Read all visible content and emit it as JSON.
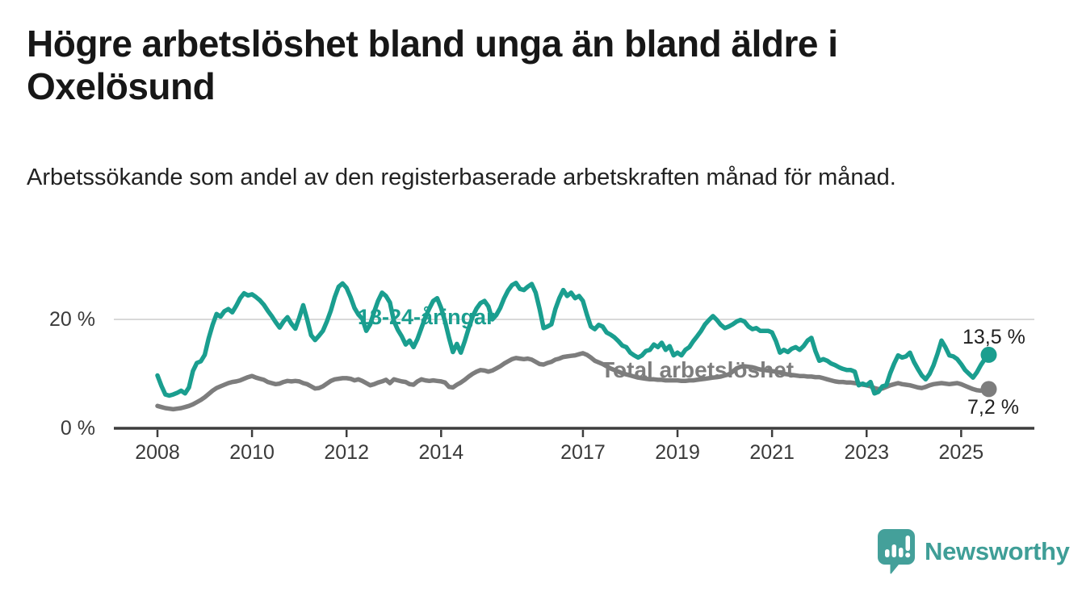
{
  "title": "Högre arbetslöshet bland unga än bland äldre i Oxelösund",
  "subtitle": "Arbetssökande som andel av den registerbaserade arbetskraften månad för månad.",
  "footer": {
    "brand": "Newsworthy"
  },
  "colors": {
    "youth_line": "#1a9e8f",
    "total_line": "#7d7d7d",
    "gridline": "#d9d9d9",
    "axis": "#3d3d3d",
    "text": "#1a1a1a",
    "brand_teal": "#44a09a"
  },
  "chart_data": {
    "type": "line",
    "x_unit": "month",
    "x_start": "2008-01",
    "x_end": "2025-08",
    "ylim": [
      0,
      28
    ],
    "grid": "y-at-20-only",
    "x_ticks": [
      {
        "year": 2008,
        "label": "2008"
      },
      {
        "year": 2010,
        "label": "2010"
      },
      {
        "year": 2012,
        "label": "2012"
      },
      {
        "year": 2014,
        "label": "2014"
      },
      {
        "year": 2017,
        "label": "2017"
      },
      {
        "year": 2019,
        "label": "2019"
      },
      {
        "year": 2021,
        "label": "2021"
      },
      {
        "year": 2023,
        "label": "2023"
      },
      {
        "year": 2025,
        "label": "2025"
      }
    ],
    "y_ticks": [
      {
        "value": 0,
        "label": "0 %"
      },
      {
        "value": 20,
        "label": "20 %"
      }
    ],
    "legend_position": "inline-labels-on-lines",
    "series": [
      {
        "name": "18-24-åringar",
        "color": "#1a9e8f",
        "end_label": "13,5 %",
        "end_value": 13.5,
        "values": [
          9.7,
          7.8,
          6.2,
          6.0,
          6.2,
          6.5,
          6.9,
          6.4,
          7.5,
          10.5,
          12.0,
          12.3,
          13.5,
          16.5,
          19.0,
          21.0,
          20.5,
          21.5,
          21.9,
          21.3,
          22.5,
          23.9,
          24.8,
          24.4,
          24.6,
          24.1,
          23.5,
          22.7,
          21.6,
          20.6,
          19.5,
          18.5,
          19.6,
          20.4,
          19.2,
          18.3,
          20.3,
          22.6,
          20.0,
          17.1,
          16.2,
          17.0,
          17.9,
          19.6,
          21.6,
          24.1,
          26.0,
          26.6,
          25.8,
          24.1,
          22.1,
          20.9,
          20.1,
          17.9,
          19.1,
          21.4,
          23.4,
          24.9,
          24.3,
          23.1,
          19.7,
          18.1,
          16.9,
          15.4,
          16.1,
          14.9,
          16.4,
          18.4,
          20.4,
          22.0,
          23.4,
          23.9,
          22.1,
          19.6,
          16.6,
          14.0,
          15.5,
          13.9,
          16.0,
          18.4,
          20.5,
          22.0,
          23.0,
          23.4,
          22.4,
          20.0,
          20.8,
          22.1,
          23.9,
          25.3,
          26.3,
          26.7,
          25.6,
          25.4,
          26.0,
          26.5,
          24.9,
          21.9,
          18.4,
          18.7,
          19.1,
          21.9,
          23.9,
          25.4,
          24.3,
          24.9,
          23.9,
          24.3,
          23.4,
          20.9,
          18.7,
          18.2,
          19.0,
          18.7,
          17.6,
          17.2,
          16.7,
          16.0,
          15.2,
          14.9,
          13.9,
          13.4,
          13.0,
          13.4,
          14.2,
          14.4,
          15.4,
          14.9,
          15.7,
          14.4,
          15.1,
          13.4,
          13.9,
          13.4,
          14.4,
          14.9,
          16.0,
          16.9,
          17.9,
          19.1,
          19.9,
          20.6,
          19.9,
          19.0,
          18.4,
          18.7,
          19.1,
          19.6,
          19.9,
          19.6,
          18.7,
          18.2,
          18.4,
          17.9,
          17.9,
          17.9,
          17.6,
          16.0,
          13.9,
          14.4,
          14.0,
          14.6,
          14.9,
          14.4,
          15.1,
          16.1,
          16.6,
          14.2,
          12.4,
          12.7,
          12.4,
          11.9,
          11.6,
          11.2,
          10.9,
          10.7,
          10.7,
          10.4,
          7.9,
          8.2,
          7.9,
          8.5,
          6.4,
          6.7,
          7.7,
          7.9,
          10.1,
          11.9,
          13.4,
          13.0,
          13.2,
          13.9,
          12.2,
          10.9,
          9.7,
          9.0,
          10.0,
          11.6,
          13.7,
          16.1,
          14.9,
          13.4,
          13.2,
          12.7,
          11.8,
          10.7,
          10.0,
          9.3,
          10.3,
          11.6,
          12.7,
          13.5
        ]
      },
      {
        "name": "Total arbetslöshet",
        "color": "#7d7d7d",
        "end_label": "7,2 %",
        "end_value": 7.2,
        "values": [
          4.1,
          3.9,
          3.7,
          3.6,
          3.5,
          3.6,
          3.7,
          3.9,
          4.1,
          4.4,
          4.8,
          5.2,
          5.7,
          6.3,
          6.9,
          7.4,
          7.7,
          8.0,
          8.3,
          8.5,
          8.6,
          8.8,
          9.1,
          9.4,
          9.6,
          9.3,
          9.1,
          8.9,
          8.5,
          8.3,
          8.1,
          8.2,
          8.5,
          8.7,
          8.6,
          8.7,
          8.6,
          8.3,
          8.1,
          7.7,
          7.3,
          7.4,
          7.7,
          8.2,
          8.7,
          9.0,
          9.1,
          9.2,
          9.2,
          9.1,
          8.8,
          9.0,
          8.7,
          8.3,
          7.9,
          8.1,
          8.4,
          8.6,
          8.9,
          8.3,
          9.0,
          8.8,
          8.6,
          8.5,
          8.1,
          8.0,
          8.6,
          9.0,
          8.8,
          8.7,
          8.8,
          8.7,
          8.6,
          8.4,
          7.6,
          7.5,
          8.0,
          8.4,
          8.9,
          9.5,
          10.0,
          10.4,
          10.7,
          10.6,
          10.4,
          10.6,
          11.0,
          11.4,
          11.9,
          12.3,
          12.7,
          12.9,
          12.8,
          12.7,
          12.8,
          12.6,
          12.2,
          11.8,
          11.7,
          12.0,
          12.2,
          12.6,
          12.8,
          13.1,
          13.2,
          13.3,
          13.4,
          13.6,
          13.8,
          13.5,
          13.0,
          12.4,
          12.1,
          11.8,
          11.4,
          11.0,
          10.7,
          10.4,
          10.1,
          9.9,
          9.7,
          9.5,
          9.3,
          9.2,
          9.1,
          9.0,
          9.0,
          8.9,
          8.9,
          8.8,
          8.8,
          8.8,
          8.8,
          8.7,
          8.7,
          8.8,
          8.8,
          8.9,
          9.0,
          9.1,
          9.2,
          9.3,
          9.4,
          9.5,
          9.7,
          9.9,
          10.4,
          11.0,
          11.3,
          11.4,
          11.3,
          11.2,
          11.0,
          10.8,
          10.7,
          10.6,
          10.5,
          10.4,
          10.2,
          10.0,
          9.9,
          9.8,
          9.7,
          9.6,
          9.6,
          9.5,
          9.5,
          9.4,
          9.4,
          9.2,
          9.0,
          8.8,
          8.6,
          8.5,
          8.5,
          8.4,
          8.4,
          8.3,
          8.2,
          8.0,
          7.9,
          7.7,
          7.4,
          7.2,
          7.3,
          7.6,
          7.9,
          8.1,
          8.3,
          8.1,
          8.0,
          7.9,
          7.7,
          7.5,
          7.4,
          7.6,
          7.9,
          8.1,
          8.2,
          8.3,
          8.2,
          8.1,
          8.2,
          8.3,
          8.1,
          7.8,
          7.5,
          7.2,
          7.0,
          6.9,
          7.0,
          7.2
        ]
      }
    ]
  }
}
